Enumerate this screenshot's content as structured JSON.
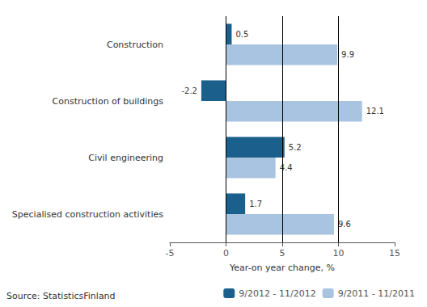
{
  "chart_data": {
    "type": "bar",
    "orientation": "horizontal",
    "categories": [
      "Construction",
      "Construction of buildings",
      "Civil engineering",
      "Specialised construction activities"
    ],
    "series": [
      {
        "name": "9/2012 - 11/2012",
        "color": "#1B5F8C",
        "values": [
          0.5,
          -2.2,
          5.2,
          1.7
        ]
      },
      {
        "name": "9/2011 - 11/2011",
        "color": "#A8C4E0",
        "values": [
          9.9,
          12.1,
          4.4,
          9.6
        ]
      }
    ],
    "xlabel": "Year-on year change, %",
    "xlim": [
      -5,
      15
    ],
    "xticks": [
      -5,
      0,
      5,
      10,
      15
    ],
    "vlines": [
      0,
      5,
      10
    ],
    "source": "Source: StatisticsFinland",
    "legend": "lower right",
    "data_labels": true,
    "grid": false
  }
}
